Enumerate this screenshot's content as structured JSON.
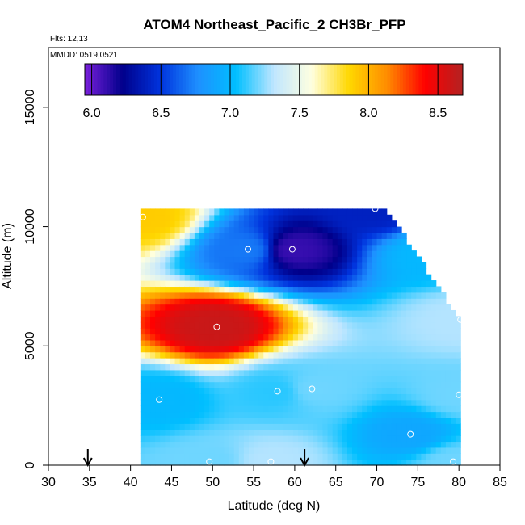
{
  "chart_data": {
    "type": "heatmap",
    "title": "ATOM4 Northeast_Pacific_2 CH3Br_PFP",
    "flights_label": "Flts: 12,13",
    "mmdd_label": "MMDD: 0519,0521",
    "xlabel": "Latitude (deg N)",
    "ylabel": "Altitude (m)",
    "xlim": [
      30,
      85
    ],
    "ylim": [
      0,
      17500
    ],
    "x_ticks": [
      30,
      35,
      40,
      45,
      50,
      55,
      60,
      65,
      70,
      75,
      80,
      85
    ],
    "y_ticks": [
      0,
      5000,
      10000,
      15000
    ],
    "colorbar": {
      "range": [
        5.95,
        8.68
      ],
      "ticks": [
        6.0,
        6.5,
        7.0,
        7.5,
        8.0,
        8.5
      ],
      "tick_labels": [
        "6.0",
        "6.5",
        "7.0",
        "7.5",
        "8.0",
        "8.5"
      ],
      "colors": [
        "#7a1fdc",
        "#00008b",
        "#0033dd",
        "#1e90ff",
        "#00bfff",
        "#bfe6ff",
        "#ffffe0",
        "#ffd700",
        "#ff8c00",
        "#ff0000",
        "#b22222"
      ]
    },
    "surface_markers_lat": [
      34.8,
      61.2
    ],
    "samples": [
      {
        "lat": 41.5,
        "alt": 10400,
        "value": 7.9
      },
      {
        "lat": 54.3,
        "alt": 9050,
        "value": 6.7
      },
      {
        "lat": 59.7,
        "alt": 9050,
        "value": 6.1
      },
      {
        "lat": 69.8,
        "alt": 10750,
        "value": 6.4
      },
      {
        "lat": 76.7,
        "alt": 8900,
        "value": 7.0
      },
      {
        "lat": 50.5,
        "alt": 5800,
        "value": 8.6
      },
      {
        "lat": 80.2,
        "alt": 6100,
        "value": 7.3
      },
      {
        "lat": 43.5,
        "alt": 2750,
        "value": 7.0
      },
      {
        "lat": 57.9,
        "alt": 3100,
        "value": 7.1
      },
      {
        "lat": 62.1,
        "alt": 3200,
        "value": 7.2
      },
      {
        "lat": 80.0,
        "alt": 2950,
        "value": 7.2
      },
      {
        "lat": 74.1,
        "alt": 1300,
        "value": 6.9
      },
      {
        "lat": 49.6,
        "alt": 150,
        "value": 7.2
      },
      {
        "lat": 57.1,
        "alt": 150,
        "value": 7.3
      },
      {
        "lat": 79.3,
        "alt": 150,
        "value": 7.2
      }
    ]
  }
}
